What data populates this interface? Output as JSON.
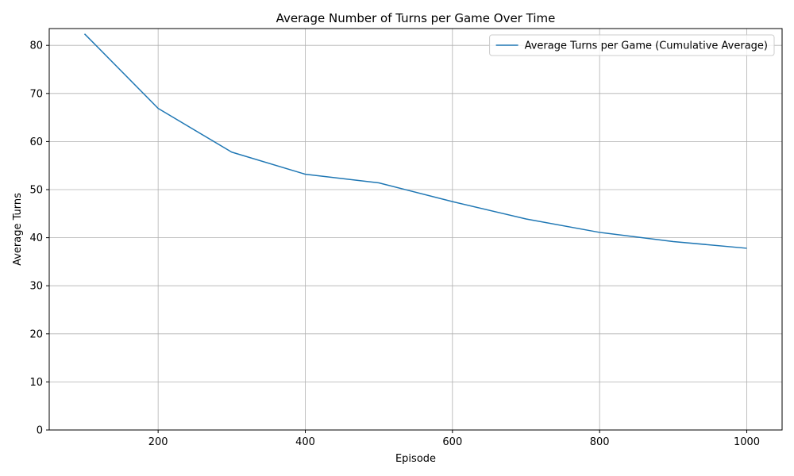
{
  "chart_data": {
    "type": "line",
    "title": "Average Number of Turns per Game Over Time",
    "xlabel": "Episode",
    "ylabel": "Average Turns",
    "xlim": [
      52,
      1048
    ],
    "ylim": [
      0,
      83.5
    ],
    "xticks": [
      200,
      400,
      600,
      800,
      1000
    ],
    "yticks": [
      0,
      10,
      20,
      30,
      40,
      50,
      60,
      70,
      80
    ],
    "grid": true,
    "legend_position": "top-right",
    "series": [
      {
        "name": "Average Turns per Game (Cumulative Average)",
        "color": "#1f77b4",
        "x": [
          100,
          200,
          300,
          400,
          500,
          600,
          700,
          800,
          900,
          1000
        ],
        "y": [
          82.4,
          66.9,
          57.8,
          53.2,
          51.4,
          47.5,
          43.9,
          41.1,
          39.2,
          37.8
        ]
      }
    ]
  }
}
